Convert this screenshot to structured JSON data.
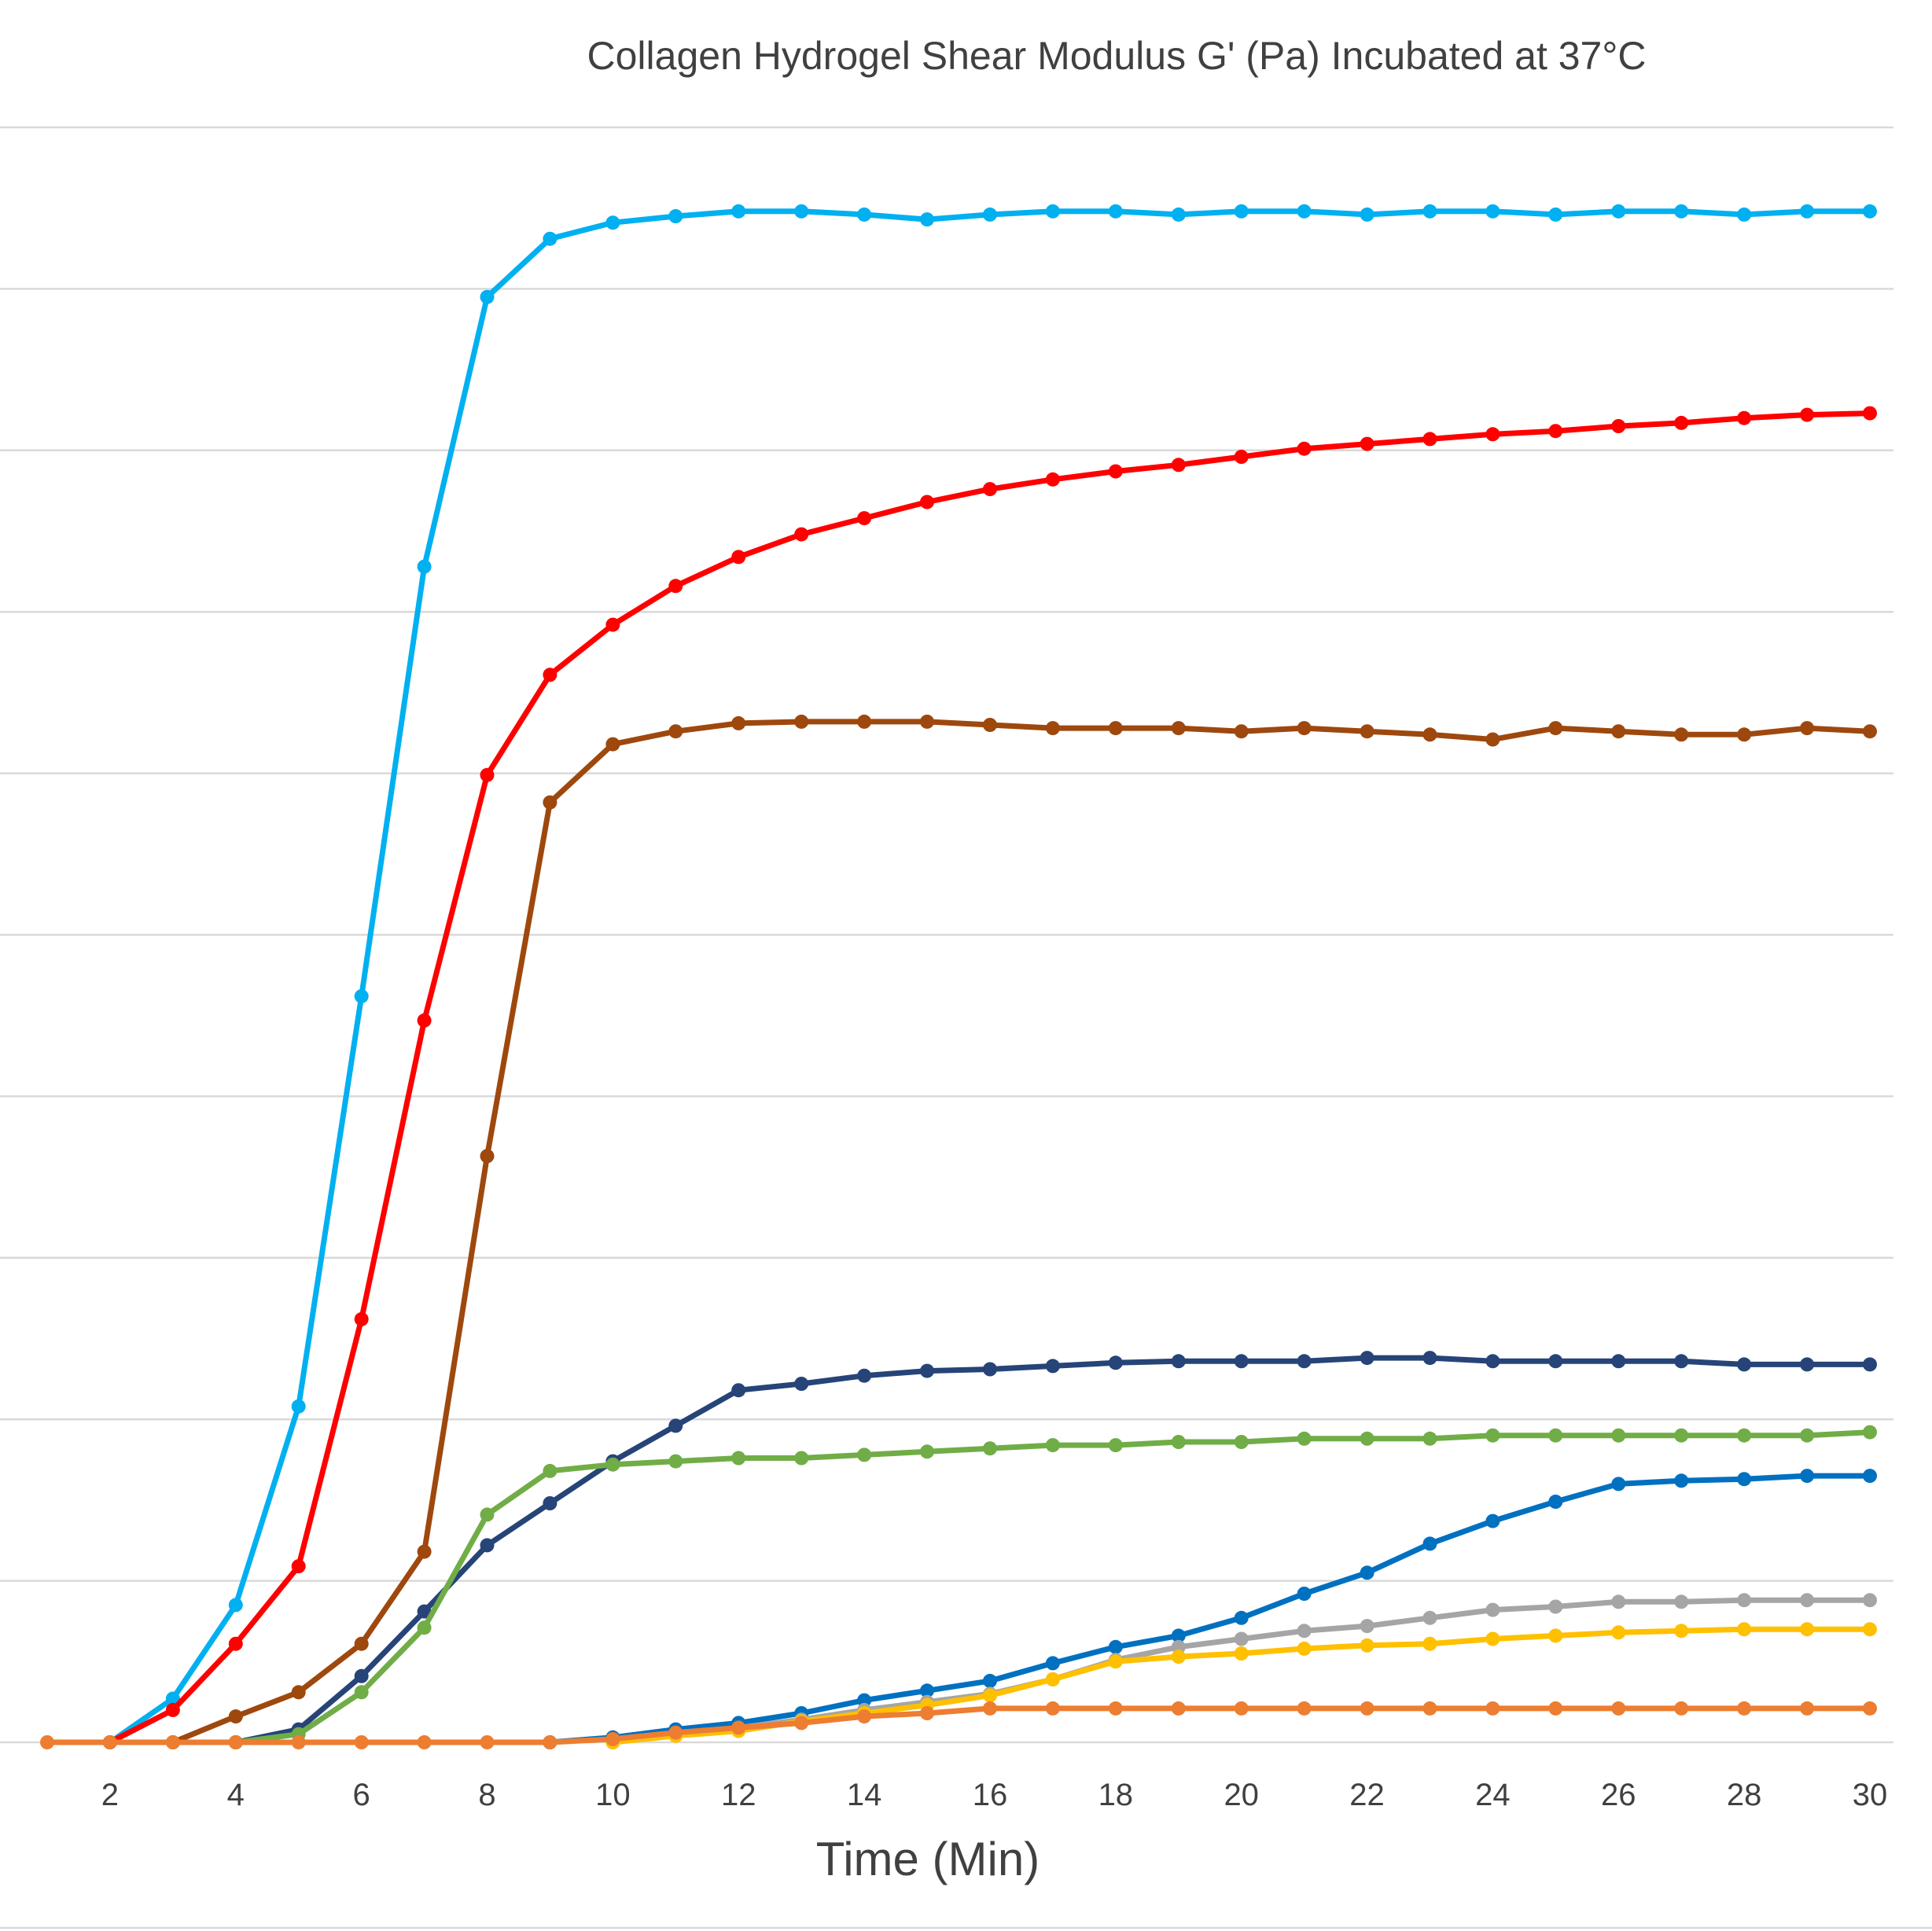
{
  "chart_data": {
    "type": "line",
    "title": "Collagen Hydrogel Shear Modulus G' (Pa) Incubated at 37°C",
    "xlabel": "Time (Min)",
    "ylabel": "",
    "xlim": [
      0,
      30
    ],
    "ylim": [
      0,
      100
    ],
    "y_gridline_step": 10,
    "grid": true,
    "legend": "none",
    "x_tick_labels": [
      "2",
      "4",
      "6",
      "8",
      "10",
      "12",
      "14",
      "16",
      "18",
      "20",
      "22",
      "24",
      "26",
      "28",
      "30"
    ],
    "x": [
      1,
      2,
      3,
      4,
      5,
      6,
      7,
      8,
      9,
      10,
      11,
      12,
      13,
      14,
      15,
      16,
      17,
      18,
      19,
      20,
      21,
      22,
      23,
      24,
      25,
      26,
      27,
      28,
      29,
      30
    ],
    "series": [
      {
        "color": "#00b0f0",
        "values": [
          null,
          0,
          2.7,
          8.5,
          20.8,
          46.2,
          72.8,
          89.5,
          93.1,
          94.1,
          94.5,
          94.8,
          94.8,
          94.6,
          94.3,
          94.6,
          94.8,
          94.8,
          94.6,
          94.8,
          94.8,
          94.6,
          94.8,
          94.8,
          94.6,
          94.8,
          94.8,
          94.6,
          94.8,
          94.8
        ]
      },
      {
        "color": "#ff0000",
        "values": [
          null,
          0,
          2.0,
          6.1,
          10.9,
          26.2,
          44.7,
          59.9,
          66.1,
          69.2,
          71.6,
          73.4,
          74.8,
          75.8,
          76.8,
          77.6,
          78.2,
          78.7,
          79.1,
          79.6,
          80.1,
          80.4,
          80.7,
          81.0,
          81.2,
          81.5,
          81.7,
          82.0,
          82.2,
          82.3
        ]
      },
      {
        "color": "#9e480e",
        "values": [
          null,
          null,
          0,
          1.6,
          3.1,
          6.1,
          11.8,
          36.3,
          58.2,
          61.8,
          62.6,
          63.1,
          63.2,
          63.2,
          63.2,
          63.0,
          62.8,
          62.8,
          62.8,
          62.6,
          62.8,
          62.6,
          62.4,
          62.1,
          62.8,
          62.6,
          62.4,
          62.4,
          62.8,
          62.6
        ]
      },
      {
        "color": "#264478",
        "values": [
          null,
          null,
          null,
          0,
          0.8,
          4.1,
          8.1,
          12.2,
          14.8,
          17.4,
          19.6,
          21.8,
          22.2,
          22.7,
          23.0,
          23.1,
          23.3,
          23.5,
          23.6,
          23.6,
          23.6,
          23.8,
          23.8,
          23.6,
          23.6,
          23.6,
          23.6,
          23.4,
          23.4,
          23.4
        ]
      },
      {
        "color": "#70ad47",
        "values": [
          null,
          null,
          null,
          0,
          0.5,
          3.1,
          7.1,
          14.1,
          16.8,
          17.2,
          17.4,
          17.6,
          17.6,
          17.8,
          18.0,
          18.2,
          18.4,
          18.4,
          18.6,
          18.6,
          18.8,
          18.8,
          18.8,
          19.0,
          19.0,
          19.0,
          19.0,
          19.0,
          19.0,
          19.2
        ]
      },
      {
        "color": "#0070c0",
        "values": [
          null,
          null,
          null,
          null,
          null,
          null,
          null,
          null,
          0,
          0.3,
          0.8,
          1.2,
          1.8,
          2.6,
          3.2,
          3.8,
          4.9,
          5.9,
          6.6,
          7.7,
          9.2,
          10.5,
          12.3,
          13.7,
          14.9,
          16.0,
          16.2,
          16.3,
          16.5,
          16.5
        ]
      },
      {
        "color": "#a5a5a5",
        "values": [
          null,
          null,
          null,
          null,
          null,
          null,
          null,
          null,
          null,
          0,
          0.5,
          0.9,
          1.4,
          2.0,
          2.5,
          3.0,
          3.9,
          5.1,
          5.9,
          6.4,
          6.9,
          7.2,
          7.7,
          8.2,
          8.4,
          8.7,
          8.7,
          8.8,
          8.8,
          8.8
        ]
      },
      {
        "color": "#ffc000",
        "values": [
          null,
          null,
          null,
          null,
          null,
          null,
          null,
          null,
          null,
          0,
          0.4,
          0.7,
          1.3,
          1.8,
          2.3,
          2.9,
          3.9,
          5.0,
          5.3,
          5.5,
          5.8,
          6.0,
          6.1,
          6.4,
          6.6,
          6.8,
          6.9,
          7.0,
          7.0,
          7.0
        ]
      },
      {
        "color": "#ed7d31",
        "values": [
          0,
          0,
          0,
          0,
          0,
          0,
          0,
          0,
          0,
          0.2,
          0.6,
          0.9,
          1.2,
          1.6,
          1.8,
          2.1,
          2.1,
          2.1,
          2.1,
          2.1,
          2.1,
          2.1,
          2.1,
          2.1,
          2.1,
          2.1,
          2.1,
          2.1,
          2.1,
          2.1
        ]
      }
    ]
  }
}
